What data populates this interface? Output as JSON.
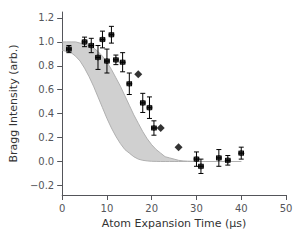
{
  "chart_data": {
    "type": "scatter",
    "xlabel": "Atom Expansion Time (μs)",
    "ylabel": "Bragg Intensity (arb.)",
    "xlim": [
      0,
      50
    ],
    "ylim": [
      -0.28,
      1.25
    ],
    "xticks": [
      0,
      10,
      20,
      30,
      40,
      50
    ],
    "yticks": [
      {
        "value": -0.2,
        "label": "−0.2"
      },
      {
        "value": 0,
        "label": "0.0"
      },
      {
        "value": 0.2,
        "label": "0.2"
      },
      {
        "value": 0.4,
        "label": "0.4"
      },
      {
        "value": 0.6,
        "label": "0.6"
      },
      {
        "value": 0.8,
        "label": "0.8"
      },
      {
        "value": 1.0,
        "label": "1.0"
      },
      {
        "value": 1.2,
        "label": "1.2"
      }
    ],
    "grid": false,
    "series": [
      {
        "type": "band",
        "color": "#b0b0b0",
        "x": [
          0,
          1,
          2,
          3,
          4,
          5,
          6,
          7,
          8,
          9,
          10,
          11,
          12,
          13,
          14,
          15,
          16,
          17,
          18,
          19,
          20,
          21,
          22,
          23,
          24,
          25,
          26,
          27,
          28,
          29,
          30,
          32,
          35,
          40
        ],
        "upper": [
          1.0,
          1.0,
          1.0,
          1.0,
          0.99,
          0.98,
          0.97,
          0.95,
          0.92,
          0.88,
          0.83,
          0.77,
          0.7,
          0.63,
          0.55,
          0.47,
          0.39,
          0.32,
          0.25,
          0.19,
          0.14,
          0.1,
          0.07,
          0.04,
          0.03,
          0.02,
          0.01,
          0.005,
          0.003,
          0.002,
          0.001,
          0.0,
          0.0,
          0.0
        ],
        "lower": [
          0.93,
          0.92,
          0.91,
          0.88,
          0.84,
          0.78,
          0.71,
          0.63,
          0.54,
          0.45,
          0.36,
          0.28,
          0.21,
          0.15,
          0.1,
          0.07,
          0.04,
          0.02,
          0.01,
          0.005,
          0.002,
          0.001,
          0.0,
          0.0,
          0.0,
          0.0,
          0.0,
          0.0,
          0.0,
          0.0,
          0.0,
          0.0,
          0.0,
          0.0
        ]
      },
      {
        "type": "scatter",
        "marker": "circle",
        "color": "#000000",
        "x": [
          1.5,
          5,
          6.5,
          8,
          9,
          10,
          11,
          12,
          13.5,
          15,
          18,
          19.5,
          20.5,
          30,
          31,
          35,
          37,
          40
        ],
        "values": [
          0.94,
          1.0,
          0.97,
          0.87,
          1.02,
          0.84,
          1.06,
          0.85,
          0.83,
          0.65,
          0.49,
          0.45,
          0.28,
          0.02,
          -0.04,
          0.03,
          0.01,
          0.07
        ],
        "yerr": [
          0.03,
          0.04,
          0.06,
          0.1,
          0.07,
          0.1,
          0.07,
          0.04,
          0.08,
          0.09,
          0.08,
          0.09,
          0.06,
          0.06,
          0.06,
          0.07,
          0.04,
          0.05
        ],
        "xerr": [
          0.5,
          0.5,
          0.5,
          0.5,
          0.5,
          0.5,
          0.5,
          0.5,
          0.5,
          0.5,
          0.5,
          0.5,
          0.5,
          0.5,
          0.5,
          0.5,
          0.5,
          0.5
        ]
      },
      {
        "type": "scatter",
        "marker": "diamond",
        "color": "#000000",
        "x": [
          17,
          22,
          26
        ],
        "values": [
          0.73,
          0.28,
          0.12
        ]
      }
    ]
  }
}
